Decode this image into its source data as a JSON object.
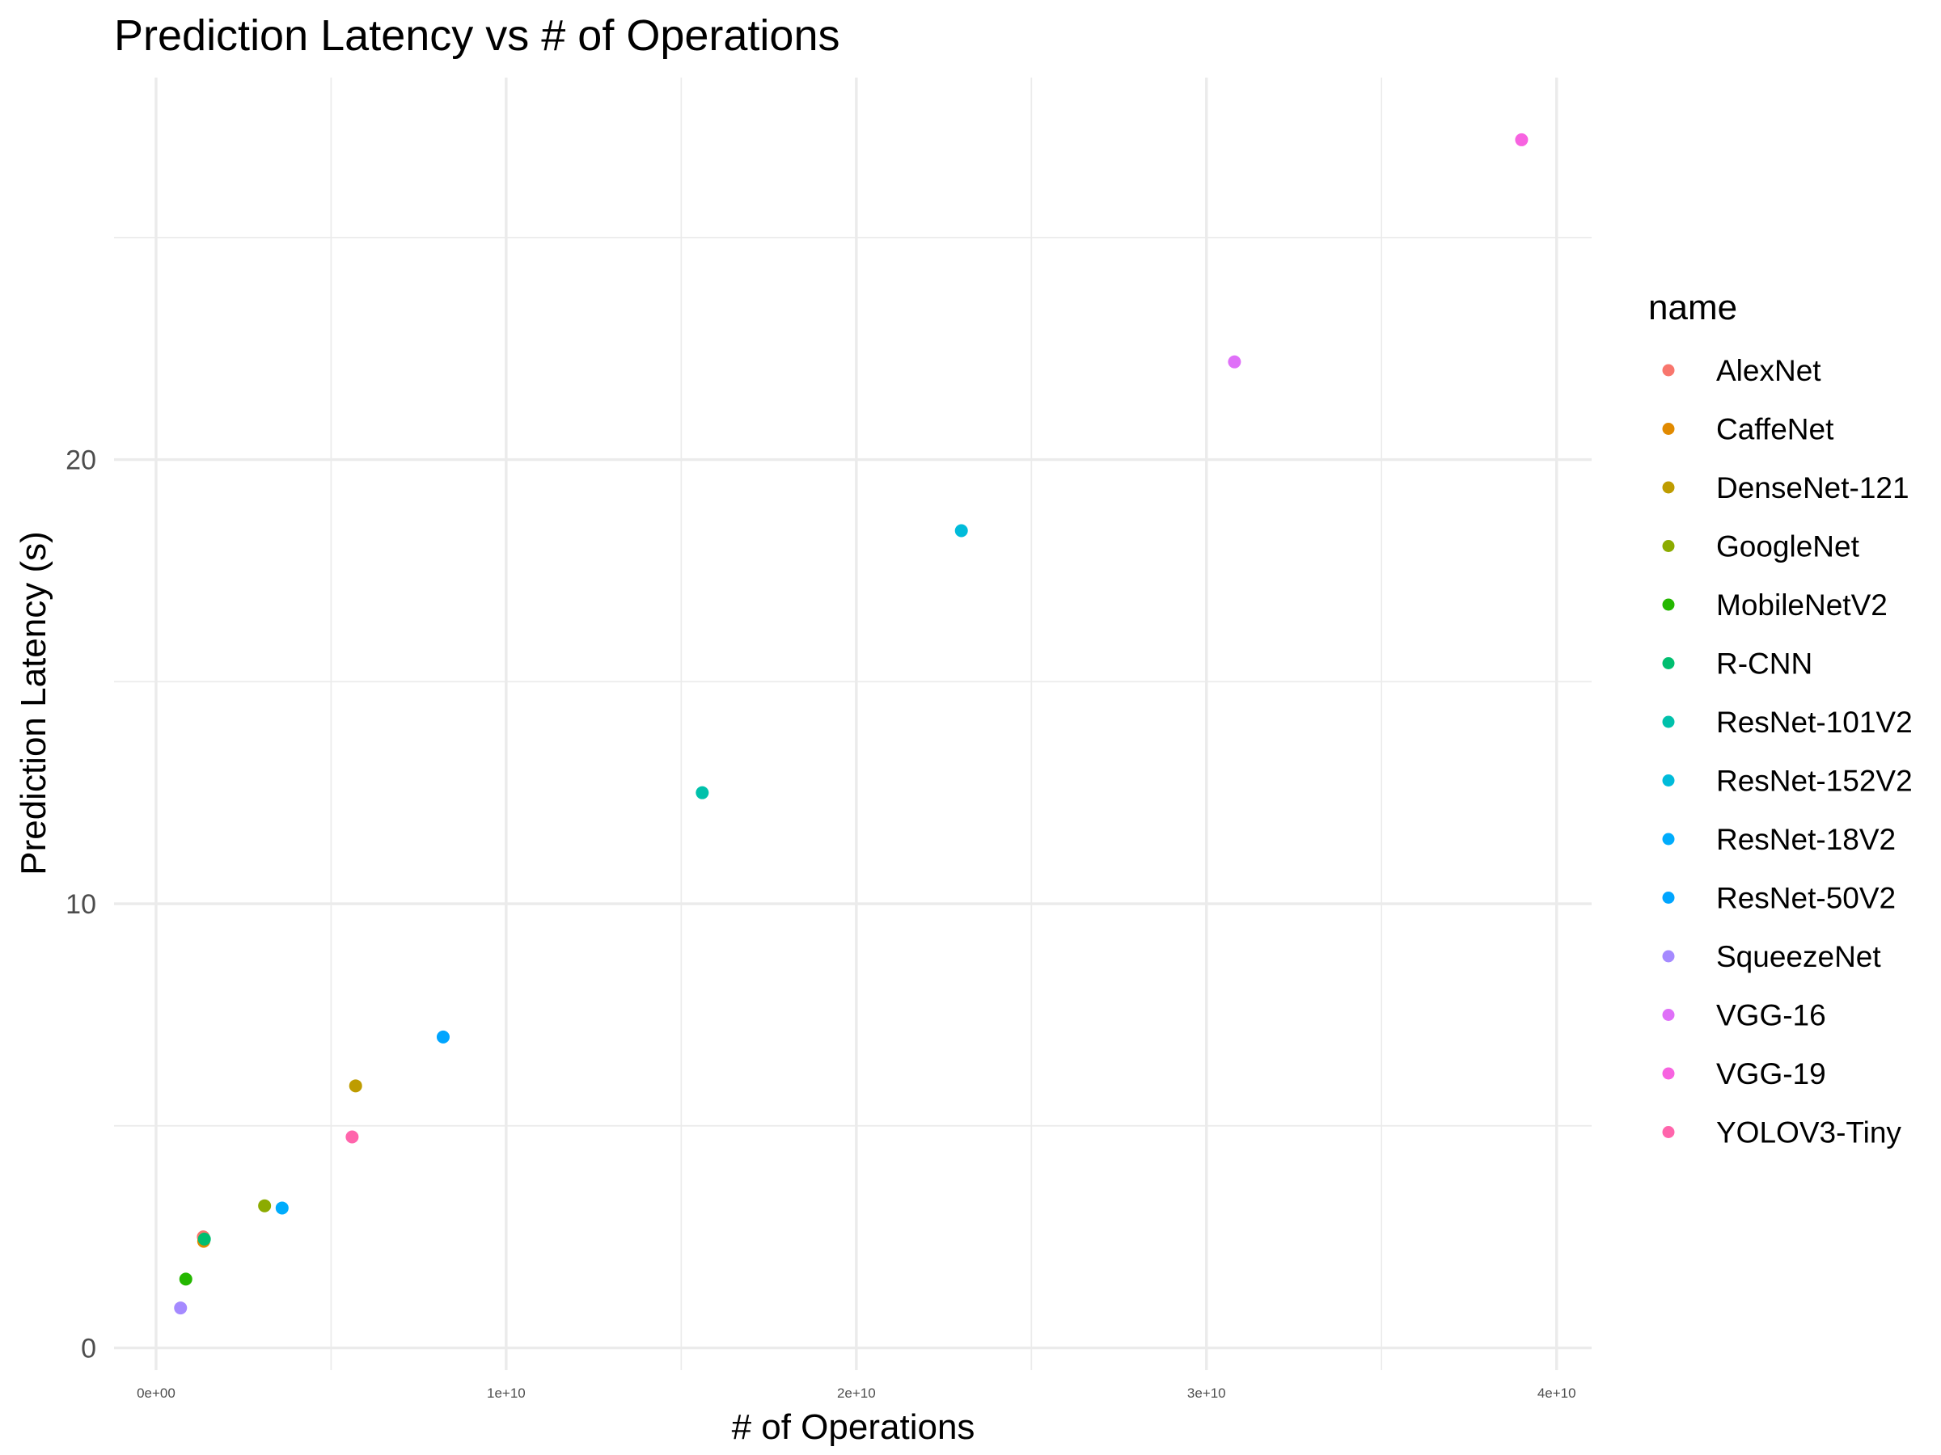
{
  "chart_data": {
    "type": "scatter",
    "title": "Prediction Latency vs # of Operations",
    "xlabel": "# of Operations",
    "ylabel": "Prediction Latency (s)",
    "xlim": [
      -1200000000.0,
      41000000000.0
    ],
    "ylim": [
      -0.5,
      28.6
    ],
    "x_ticks": [
      0,
      10000000000.0,
      20000000000.0,
      30000000000.0,
      40000000000.0
    ],
    "x_tick_labels": [
      "0e+00",
      "1e+10",
      "2e+10",
      "3e+10",
      "4e+10"
    ],
    "y_ticks": [
      0,
      10,
      20
    ],
    "y_tick_labels": [
      "0",
      "10",
      "20"
    ],
    "grid": true,
    "legend": {
      "title": "name",
      "position": "right"
    },
    "series": [
      {
        "name": "AlexNet",
        "color": "#F8766D",
        "x": 1350000000.0,
        "y": 2.5
      },
      {
        "name": "CaffeNet",
        "color": "#E18A00",
        "x": 1360000000.0,
        "y": 2.4
      },
      {
        "name": "DenseNet-121",
        "color": "#BE9C00",
        "x": 5700000000.0,
        "y": 5.9
      },
      {
        "name": "GoogleNet",
        "color": "#8CAB00",
        "x": 3100000000.0,
        "y": 3.2
      },
      {
        "name": "MobileNetV2",
        "color": "#24B700",
        "x": 850000000.0,
        "y": 1.55
      },
      {
        "name": "R-CNN",
        "color": "#00BE70",
        "x": 1380000000.0,
        "y": 2.45
      },
      {
        "name": "ResNet-101V2",
        "color": "#00C1AB",
        "x": 15600000000.0,
        "y": 12.5
      },
      {
        "name": "ResNet-152V2",
        "color": "#00BBDA",
        "x": 23000000000.0,
        "y": 18.4
      },
      {
        "name": "ResNet-18V2",
        "color": "#00ACFC",
        "x": 3600000000.0,
        "y": 3.15
      },
      {
        "name": "ResNet-50V2",
        "color": "#00A5FF",
        "x": 8200000000.0,
        "y": 7.0
      },
      {
        "name": "SqueezeNet",
        "color": "#A58AFF",
        "x": 700000000.0,
        "y": 0.9
      },
      {
        "name": "VGG-16",
        "color": "#DF70F8",
        "x": 30800000000.0,
        "y": 22.2
      },
      {
        "name": "VGG-19",
        "color": "#F763E0",
        "x": 39000000000.0,
        "y": 27.2
      },
      {
        "name": "YOLOV3-Tiny",
        "color": "#FF65AC",
        "x": 5600000000.0,
        "y": 4.75
      }
    ]
  }
}
